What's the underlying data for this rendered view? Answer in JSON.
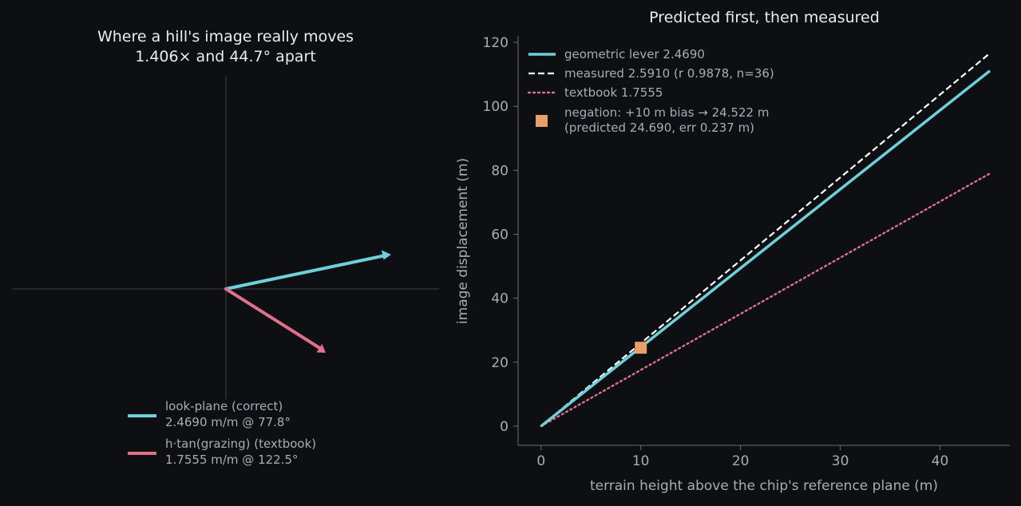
{
  "chart_data": [
    {
      "type": "vector",
      "title_line1": "Where a hill's image really moves",
      "title_line2": "1.406× and 44.7° apart",
      "vectors": [
        {
          "name_line1": "look-plane (correct)",
          "name_line2": "2.4690 m/m @ 77.8°",
          "magnitude": 2.469,
          "color": "#6fd0dc"
        },
        {
          "name_line1": "h·tan(grazing) (textbook)",
          "name_line2": "1.7555 m/m @ 122.5°",
          "magnitude": 1.7555,
          "color": "#e0708c"
        }
      ],
      "grid": false,
      "legend_position": "bottom-center"
    },
    {
      "type": "line",
      "title": "Predicted first, then measured",
      "xlabel": "terrain height above the chip's reference plane (m)",
      "ylabel": "image displacement (m)",
      "xlim": [
        -2.3,
        47
      ],
      "ylim": [
        -6,
        122
      ],
      "xticks": [
        0,
        10,
        20,
        30,
        40
      ],
      "yticks": [
        0,
        20,
        40,
        60,
        80,
        100,
        120
      ],
      "series": [
        {
          "name": "geometric lever 2.4690",
          "style": "solid",
          "color": "#6fd0dc",
          "x": [
            0,
            45
          ],
          "y": [
            0,
            111.1
          ]
        },
        {
          "name": "measured 2.5910  (r 0.9878, n=36)",
          "style": "dashed",
          "color": "#ffffff",
          "x": [
            0,
            45
          ],
          "y": [
            0,
            116.6
          ]
        },
        {
          "name": "textbook 1.7555",
          "style": "dotted",
          "color": "#e0708c",
          "x": [
            0,
            45
          ],
          "y": [
            0,
            79.0
          ]
        }
      ],
      "points": [
        {
          "name_line1": "negation: +10 m bias → 24.522 m",
          "name_line2": "(predicted 24.690, err 0.237 m)",
          "x": 10,
          "y": 24.522,
          "color": "#e8a06a"
        }
      ],
      "grid": false,
      "legend_position": "top-left"
    }
  ]
}
